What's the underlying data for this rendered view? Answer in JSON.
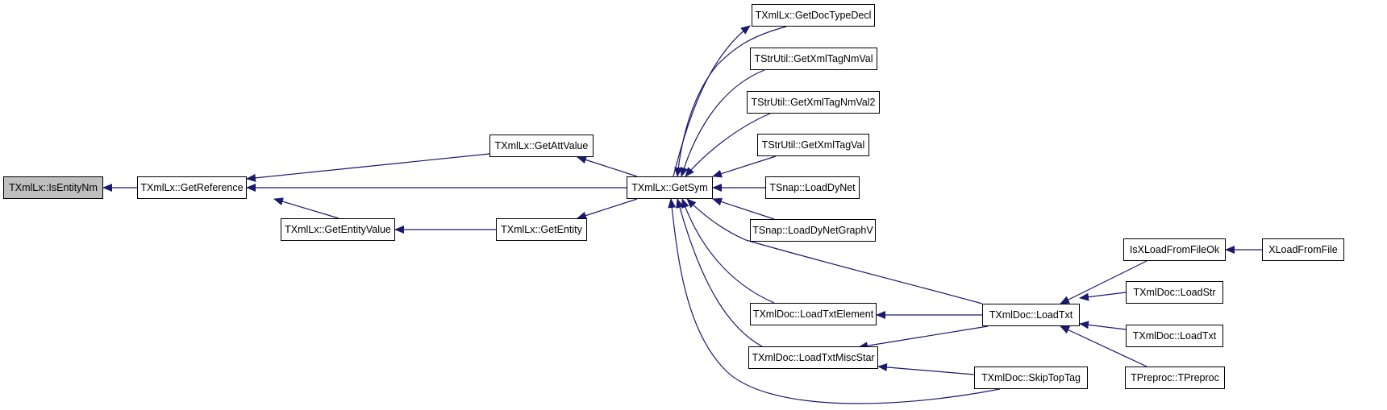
{
  "graph": {
    "edge_color": "#191970",
    "current_fill": "#bfbfbf",
    "nodes": {
      "isentitynm": "TXmlLx::IsEntityNm",
      "getreference": "TXmlLx::GetReference",
      "getattvalue": "TXmlLx::GetAttValue",
      "getentityvalue": "TXmlLx::GetEntityValue",
      "getentity": "TXmlLx::GetEntity",
      "getsym": "TXmlLx::GetSym",
      "getdoctypedecl": "TXmlLx::GetDocTypeDecl",
      "getxmltagnmval": "TStrUtil::GetXmlTagNmVal",
      "getxmltagnmval2": "TStrUtil::GetXmlTagNmVal2",
      "getxmltagval": "TStrUtil::GetXmlTagVal",
      "loaddynet": "TSnap::LoadDyNet",
      "loaddynetgraphv": "TSnap::LoadDyNetGraphV",
      "loadtxtelement": "TXmlDoc::LoadTxtElement",
      "loadtxtmiscstar": "TXmlDoc::LoadTxtMiscStar",
      "loadtxt": "TXmlDoc::LoadTxt",
      "skiptoptag": "TXmlDoc::SkipTopTag",
      "isxloadfromfileok": "IsXLoadFromFileOk",
      "xloadfromfile": "XLoadFromFile",
      "loadstr": "TXmlDoc::LoadStr",
      "loadtxt2": "TXmlDoc::LoadTxt",
      "tpreproc": "TPreproc::TPreproc"
    },
    "current": "isentitynm",
    "edges": [
      [
        "getreference",
        "isentitynm"
      ],
      [
        "getattvalue",
        "getreference"
      ],
      [
        "getsym",
        "getreference"
      ],
      [
        "getentityvalue",
        "getreference"
      ],
      [
        "getentity",
        "getentityvalue"
      ],
      [
        "getsym",
        "getattvalue"
      ],
      [
        "getsym",
        "getentity"
      ],
      [
        "getsym",
        "getdoctypedecl"
      ],
      [
        "getdoctypedecl",
        "getsym"
      ],
      [
        "getxmltagnmval",
        "getsym"
      ],
      [
        "getxmltagnmval2",
        "getsym"
      ],
      [
        "getxmltagval",
        "getsym"
      ],
      [
        "loaddynet",
        "getsym"
      ],
      [
        "loaddynetgraphv",
        "getsym"
      ],
      [
        "loadtxt",
        "getsym"
      ],
      [
        "loadtxtelement",
        "getsym"
      ],
      [
        "loadtxtmiscstar",
        "getsym"
      ],
      [
        "skiptoptag",
        "getsym"
      ],
      [
        "loadtxt",
        "loadtxtelement"
      ],
      [
        "loadtxt",
        "loadtxtmiscstar"
      ],
      [
        "skiptoptag",
        "loadtxtmiscstar"
      ],
      [
        "isxloadfromfileok",
        "loadtxt"
      ],
      [
        "loadstr",
        "loadtxt"
      ],
      [
        "loadtxt2",
        "loadtxt"
      ],
      [
        "tpreproc",
        "loadtxt"
      ],
      [
        "xloadfromfile",
        "isxloadfromfileok"
      ]
    ]
  }
}
